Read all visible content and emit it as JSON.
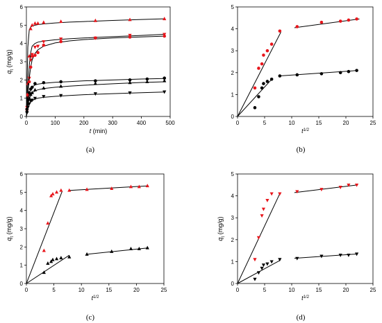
{
  "colors": {
    "black": "#000000",
    "red": "#e8151b",
    "axis": "#000000"
  },
  "chart_data": [
    {
      "panel": "a",
      "type": "scatter",
      "caption": "(a)",
      "xlabel": "t",
      "xlabel_suffix": " (min)",
      "ylabel": "q",
      "ylabel_sub": "t",
      "ylabel_suffix": " (mg/g)",
      "xlim": [
        0,
        500
      ],
      "ylim": [
        0,
        6
      ],
      "xticks": [
        0,
        100,
        200,
        300,
        400,
        500
      ],
      "yticks": [
        0,
        1,
        2,
        3,
        4,
        5,
        6
      ],
      "series": [
        {
          "marker": "triangle-up",
          "color": "red",
          "x": [
            2,
            5,
            10,
            15,
            20,
            30,
            40,
            60,
            120,
            240,
            360,
            480
          ],
          "y": [
            0.4,
            1.8,
            3.3,
            4.8,
            5.0,
            5.1,
            5.1,
            5.15,
            5.2,
            5.25,
            5.3,
            5.35
          ],
          "fit_x": [
            0,
            2,
            5,
            10,
            15,
            20,
            30,
            40,
            60,
            100,
            150,
            200,
            300,
            400,
            480
          ],
          "fit_y": [
            0,
            1.5,
            3.8,
            4.75,
            4.9,
            4.95,
            5.0,
            5.03,
            5.07,
            5.12,
            5.17,
            5.2,
            5.26,
            5.31,
            5.35
          ]
        },
        {
          "marker": "triangle-down",
          "color": "red",
          "x": [
            2,
            5,
            10,
            15,
            20,
            30,
            40,
            60,
            120,
            240,
            360,
            480
          ],
          "y": [
            0.5,
            1.1,
            2.1,
            3.1,
            3.4,
            3.8,
            3.85,
            4.1,
            4.25,
            4.3,
            4.45,
            4.5
          ],
          "fit_x": [
            0,
            2,
            5,
            10,
            15,
            20,
            30,
            40,
            60,
            100,
            150,
            200,
            300,
            400,
            480
          ],
          "fit_y": [
            0,
            0.6,
            1.6,
            2.8,
            3.5,
            3.85,
            4.0,
            4.07,
            4.13,
            4.2,
            4.26,
            4.3,
            4.37,
            4.44,
            4.5
          ]
        },
        {
          "marker": "circle",
          "color": "red",
          "x": [
            2,
            5,
            10,
            15,
            20,
            30,
            40,
            60,
            120,
            240,
            360,
            480
          ],
          "y": [
            0.4,
            1.2,
            1.9,
            2.7,
            3.3,
            3.35,
            3.5,
            3.9,
            4.1,
            4.3,
            4.35,
            4.4
          ],
          "fit_x": [
            0,
            2,
            5,
            10,
            15,
            20,
            30,
            40,
            60,
            100,
            150,
            200,
            300,
            400,
            480
          ],
          "fit_y": [
            0,
            0.5,
            1.2,
            2.1,
            2.7,
            3.1,
            3.45,
            3.65,
            3.85,
            4.03,
            4.14,
            4.21,
            4.3,
            4.36,
            4.4
          ]
        },
        {
          "marker": "circle",
          "color": "black",
          "x": [
            2,
            5,
            10,
            15,
            20,
            30,
            60,
            120,
            240,
            360,
            420,
            480
          ],
          "y": [
            0.4,
            0.9,
            1.3,
            1.5,
            1.6,
            1.8,
            1.85,
            1.9,
            1.95,
            2.0,
            2.05,
            2.1
          ],
          "fit_x": [
            0,
            2,
            5,
            10,
            15,
            20,
            30,
            40,
            60,
            100,
            150,
            200,
            300,
            400,
            480
          ],
          "fit_y": [
            0,
            0.3,
            0.8,
            1.25,
            1.5,
            1.62,
            1.72,
            1.77,
            1.82,
            1.87,
            1.91,
            1.95,
            2.0,
            2.05,
            2.08
          ]
        },
        {
          "marker": "triangle-up",
          "color": "black",
          "x": [
            2,
            5,
            10,
            15,
            20,
            30,
            60,
            120,
            240,
            360,
            420,
            480
          ],
          "y": [
            0.3,
            0.7,
            1.0,
            1.2,
            1.3,
            1.45,
            1.55,
            1.65,
            1.8,
            1.85,
            1.9,
            1.95
          ],
          "fit_x": [
            0,
            2,
            5,
            10,
            15,
            20,
            30,
            40,
            60,
            100,
            150,
            200,
            300,
            400,
            480
          ],
          "fit_y": [
            0,
            0.25,
            0.6,
            0.95,
            1.15,
            1.28,
            1.4,
            1.46,
            1.53,
            1.6,
            1.66,
            1.71,
            1.79,
            1.86,
            1.9
          ]
        },
        {
          "marker": "triangle-down",
          "color": "black",
          "x": [
            2,
            5,
            10,
            15,
            20,
            30,
            60,
            120,
            240,
            360,
            480
          ],
          "y": [
            0.2,
            0.5,
            0.7,
            0.85,
            0.9,
            1.0,
            1.1,
            1.15,
            1.25,
            1.3,
            1.35
          ],
          "fit_x": [
            0,
            2,
            5,
            10,
            15,
            20,
            30,
            40,
            60,
            100,
            150,
            200,
            300,
            400,
            480
          ],
          "fit_y": [
            0,
            0.18,
            0.42,
            0.65,
            0.78,
            0.86,
            0.95,
            1.0,
            1.05,
            1.1,
            1.15,
            1.19,
            1.25,
            1.3,
            1.34
          ]
        }
      ]
    },
    {
      "panel": "b",
      "type": "scatter",
      "caption": "(b)",
      "xlabel": "t",
      "xlabel_sup": "1/2",
      "ylabel": "",
      "xlim": [
        0,
        25
      ],
      "ylim": [
        0,
        5
      ],
      "xticks": [
        0,
        5,
        10,
        15,
        20,
        25
      ],
      "yticks": [
        0,
        1,
        2,
        3,
        4,
        5
      ],
      "series": [
        {
          "marker": "circle",
          "color": "red",
          "x": [
            3.2,
            3.9,
            4.5,
            4.8,
            5.5,
            6.3,
            7.8,
            11.0,
            15.5,
            19.0,
            20.5,
            22.0
          ],
          "y": [
            1.3,
            2.2,
            2.4,
            2.8,
            3.0,
            3.3,
            3.9,
            4.1,
            4.3,
            4.35,
            4.4,
            4.45
          ]
        },
        {
          "marker": "circle",
          "color": "black",
          "x": [
            3.2,
            3.9,
            4.5,
            4.8,
            5.5,
            6.3,
            7.8,
            11.0,
            15.5,
            19.0,
            20.5,
            22.0
          ],
          "y": [
            0.4,
            0.9,
            1.3,
            1.5,
            1.6,
            1.7,
            1.85,
            1.9,
            1.95,
            2.0,
            2.05,
            2.1
          ]
        }
      ],
      "lines": [
        {
          "color": "black",
          "x": [
            0,
            8
          ],
          "y": [
            0,
            3.85
          ]
        },
        {
          "color": "black",
          "x": [
            10.5,
            22.5
          ],
          "y": [
            4.05,
            4.45
          ]
        },
        {
          "color": "black",
          "x": [
            0,
            6.5
          ],
          "y": [
            0,
            1.75
          ]
        },
        {
          "color": "black",
          "x": [
            7.8,
            22.2
          ],
          "y": [
            1.85,
            2.1
          ]
        }
      ]
    },
    {
      "panel": "c",
      "type": "scatter",
      "caption": "(c)",
      "xlabel": "t",
      "xlabel_sup": "1/2",
      "ylabel": "q",
      "ylabel_sub": "t",
      "ylabel_suffix": " (mg/g)",
      "xlim": [
        0,
        25
      ],
      "ylim": [
        0,
        6
      ],
      "xticks": [
        0,
        5,
        10,
        15,
        20,
        25
      ],
      "yticks": [
        0,
        1,
        2,
        3,
        4,
        5,
        6
      ],
      "series": [
        {
          "marker": "triangle-up",
          "color": "red",
          "x": [
            3.2,
            3.9,
            4.5,
            4.8,
            5.5,
            6.3,
            7.8,
            11.0,
            15.5,
            19.0,
            20.5,
            22.0
          ],
          "y": [
            1.8,
            3.3,
            4.8,
            4.9,
            5.0,
            5.1,
            5.1,
            5.15,
            5.2,
            5.3,
            5.3,
            5.35
          ]
        },
        {
          "marker": "triangle-up",
          "color": "black",
          "x": [
            3.2,
            3.9,
            4.5,
            4.8,
            5.5,
            6.3,
            7.8,
            11.0,
            15.5,
            19.0,
            20.5,
            22.0
          ],
          "y": [
            0.6,
            1.1,
            1.2,
            1.3,
            1.35,
            1.4,
            1.45,
            1.6,
            1.75,
            1.9,
            1.9,
            1.95
          ]
        }
      ],
      "lines": [
        {
          "color": "black",
          "x": [
            0,
            6.5
          ],
          "y": [
            0,
            5.05
          ]
        },
        {
          "color": "black",
          "x": [
            7.8,
            22.2
          ],
          "y": [
            5.1,
            5.35
          ]
        },
        {
          "color": "black",
          "x": [
            0,
            7.8
          ],
          "y": [
            0,
            1.55
          ]
        },
        {
          "color": "black",
          "x": [
            11.0,
            22.2
          ],
          "y": [
            1.6,
            1.95
          ]
        }
      ]
    },
    {
      "panel": "d",
      "type": "scatter",
      "caption": "(d)",
      "xlabel": "t",
      "xlabel_sup": "1/2",
      "ylabel": "q",
      "ylabel_sub": "t",
      "ylabel_suffix": " (mg/g)",
      "xlim": [
        0,
        25
      ],
      "ylim": [
        0,
        5
      ],
      "xticks": [
        0,
        5,
        10,
        15,
        20,
        25
      ],
      "yticks": [
        0,
        1,
        2,
        3,
        4,
        5
      ],
      "series": [
        {
          "marker": "triangle-down",
          "color": "red",
          "x": [
            3.2,
            3.9,
            4.5,
            4.8,
            5.5,
            6.3,
            7.8,
            11.0,
            15.5,
            19.0,
            20.5,
            22.0
          ],
          "y": [
            1.1,
            2.1,
            3.1,
            3.4,
            3.8,
            4.1,
            4.1,
            4.2,
            4.3,
            4.4,
            4.5,
            4.5
          ]
        },
        {
          "marker": "triangle-down",
          "color": "black",
          "x": [
            3.2,
            3.9,
            4.5,
            4.8,
            5.5,
            6.3,
            7.8,
            11.0,
            15.5,
            19.0,
            20.5,
            22.0
          ],
          "y": [
            0.2,
            0.5,
            0.7,
            0.85,
            0.9,
            1.0,
            1.1,
            1.15,
            1.25,
            1.3,
            1.3,
            1.35
          ]
        }
      ],
      "lines": [
        {
          "color": "black",
          "x": [
            0,
            7.8
          ],
          "y": [
            0,
            4.1
          ]
        },
        {
          "color": "black",
          "x": [
            10.5,
            22.2
          ],
          "y": [
            4.15,
            4.5
          ]
        },
        {
          "color": "black",
          "x": [
            0,
            7.8
          ],
          "y": [
            0,
            1.05
          ]
        },
        {
          "color": "black",
          "x": [
            10.5,
            22.2
          ],
          "y": [
            1.15,
            1.35
          ]
        }
      ]
    }
  ]
}
